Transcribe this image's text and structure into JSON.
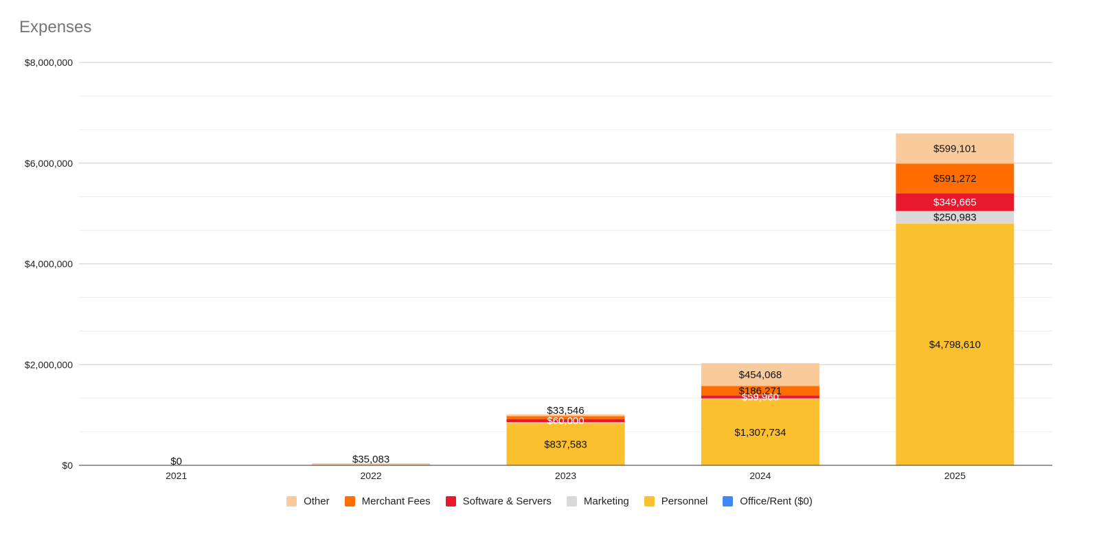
{
  "chart_data": {
    "type": "bar",
    "stacked": true,
    "title": "Expenses",
    "xlabel": "",
    "ylabel": "",
    "categories": [
      "2021",
      "2022",
      "2023",
      "2024",
      "2025"
    ],
    "ylim": [
      0,
      8000000
    ],
    "yticks": [
      0,
      2000000,
      4000000,
      6000000,
      8000000
    ],
    "ytick_labels": [
      "$0",
      "$2,000,000",
      "$4,000,000",
      "$6,000,000",
      "$8,000,000"
    ],
    "grid": true,
    "legend_position": "bottom",
    "series": [
      {
        "name": "Office/Rent ($0)",
        "color": "#4285f4",
        "values": [
          0,
          0,
          0,
          0,
          0
        ],
        "labels": [
          "",
          "",
          "",
          "",
          ""
        ]
      },
      {
        "name": "Personnel",
        "color": "#fbc02d",
        "values": [
          0,
          0,
          837583,
          1307734,
          4798610
        ],
        "labels": [
          "",
          "",
          "$837,583",
          "$1,307,734",
          "$4,798,610"
        ]
      },
      {
        "name": "Marketing",
        "color": "#d9d9d9",
        "values": [
          0,
          0,
          20000,
          20000,
          250983
        ],
        "labels": [
          "",
          "",
          "",
          "",
          "$250,983"
        ]
      },
      {
        "name": "Software & Servers",
        "color": "#e8192c",
        "values": [
          0,
          0,
          60000,
          59960,
          349665
        ],
        "labels": [
          "",
          "",
          "$60,000",
          "$59,960",
          "$349,665"
        ]
      },
      {
        "name": "Merchant Fees",
        "color": "#ff6d00",
        "values": [
          0,
          5000,
          60000,
          186271,
          591272
        ],
        "labels": [
          "",
          "",
          "",
          "$186,271",
          "$591,272"
        ]
      },
      {
        "name": "Other",
        "color": "#f9cb9c",
        "values": [
          0,
          35083,
          33546,
          454068,
          599101
        ],
        "labels": [
          "$0",
          "$35,083",
          "$33,546",
          "$454,068",
          "$599,101"
        ]
      }
    ],
    "legend_order": [
      "Other",
      "Merchant Fees",
      "Software & Servers",
      "Marketing",
      "Personnel",
      "Office/Rent ($0)"
    ]
  }
}
